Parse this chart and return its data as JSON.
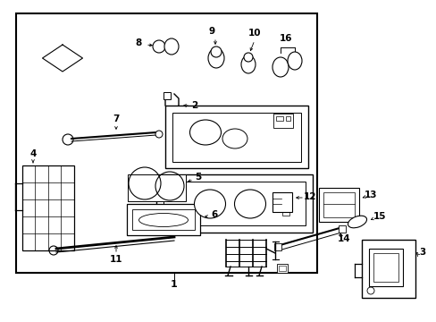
{
  "bg_color": "#ffffff",
  "line_color": "#000000",
  "text_color": "#000000",
  "figsize": [
    4.89,
    3.6
  ],
  "dpi": 100
}
